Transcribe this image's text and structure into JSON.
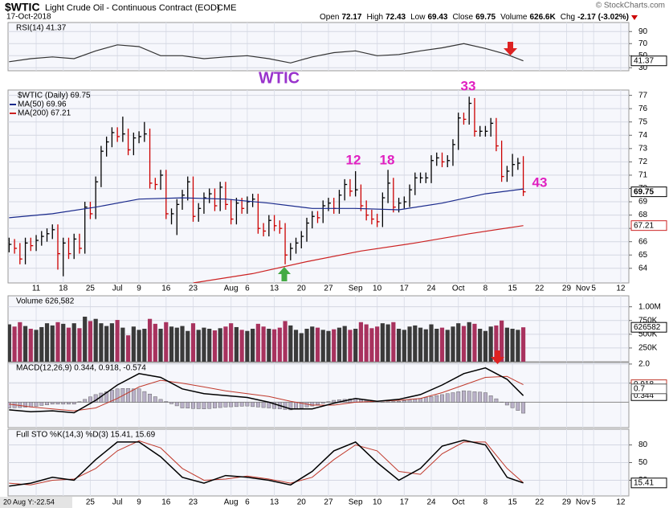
{
  "header": {
    "symbol": "$WTIC",
    "description": "Light Crude Oil - Continuous Contract (EOD)",
    "exchange": "CME",
    "date": "17-Oct-2018",
    "credit": "© StockCharts.com",
    "cursor": "20 Aug Y:-22.54",
    "quote": [
      {
        "label": "Open",
        "value": 72.17
      },
      {
        "label": "High",
        "value": 72.43
      },
      {
        "label": "Low",
        "value": 69.43
      },
      {
        "label": "Close",
        "value": 69.75
      },
      {
        "label": "Volume",
        "value": "626.6K"
      },
      {
        "label": "Chg",
        "value": "-2.17 (-3.02%)"
      }
    ]
  },
  "chart_data": [
    {
      "type": "ohlc",
      "name": "$WTIC (Daily) 69.75",
      "up_color": "#000000",
      "down_color": "#cc0000",
      "grid": true,
      "annotations": [
        "WTIC",
        "33",
        "12",
        "18",
        "43"
      ],
      "high": [
        66.3,
        66.2,
        65.9,
        66.3,
        66.3,
        66.5,
        66.8,
        67.0,
        67.3,
        67.3,
        66.3,
        66.3,
        66.6,
        66.6,
        69.0,
        69.0,
        70.9,
        73.2,
        73.9,
        74.6,
        74.6,
        75.4,
        74.5,
        74.2,
        74.3,
        75.0,
        74.5,
        70.8,
        71.4,
        71.4,
        68.5,
        69.2,
        69.9,
        70.9,
        70.9,
        68.9,
        69.7,
        70.0,
        70.0,
        70.5,
        70.5,
        69.2,
        69.3,
        69.3,
        69.4,
        69.6,
        69.6,
        67.4,
        68.0,
        68.0,
        67.6,
        67.4,
        65.9,
        66.3,
        66.8,
        67.8,
        68.3,
        68.3,
        69.1,
        69.3,
        69.3,
        69.9,
        70.7,
        70.7,
        71.3,
        70.3,
        69.1,
        68.4,
        68.1,
        69.7,
        71.4,
        70.8,
        69.3,
        69.4,
        70.3,
        71.2,
        71.2,
        71.2,
        72.5,
        72.7,
        72.7,
        72.5,
        73.7,
        75.7,
        75.7,
        76.9,
        76.8,
        74.7,
        74.7,
        75.3,
        75.3,
        73.6,
        71.7,
        72.6,
        72.3,
        72.43
      ],
      "low": [
        65.2,
        65.1,
        64.3,
        64.3,
        65.3,
        65.3,
        65.7,
        66.0,
        66.2,
        63.9,
        63.4,
        64.7,
        64.7,
        65.1,
        65.1,
        67.7,
        67.7,
        70.1,
        72.4,
        73.1,
        73.5,
        73.5,
        72.5,
        72.5,
        73.4,
        73.5,
        70.0,
        69.9,
        69.9,
        67.7,
        67.3,
        66.5,
        68.4,
        69.1,
        67.5,
        67.5,
        68.1,
        68.9,
        68.3,
        68.3,
        68.4,
        67.3,
        67.3,
        68.1,
        68.1,
        68.6,
        66.6,
        66.4,
        66.4,
        66.8,
        66.6,
        64.3,
        64.6,
        65.1,
        65.5,
        66.0,
        67.0,
        67.4,
        67.4,
        68.3,
        68.1,
        68.1,
        69.1,
        69.4,
        69.4,
        68.3,
        67.6,
        67.3,
        67.1,
        67.1,
        68.9,
        68.2,
        68.2,
        68.5,
        68.6,
        69.5,
        70.4,
        70.4,
        70.4,
        71.7,
        71.6,
        71.6,
        71.7,
        72.9,
        74.8,
        74.8,
        73.9,
        73.9,
        73.9,
        73.9,
        72.8,
        70.5,
        70.5,
        70.9,
        71.4,
        69.43
      ],
      "close": [
        65.8,
        65.5,
        64.7,
        65.9,
        65.7,
        66.1,
        66.4,
        66.6,
        66.9,
        65.1,
        65.9,
        65.1,
        66.2,
        65.5,
        68.6,
        68.1,
        70.5,
        72.8,
        73.5,
        74.2,
        73.9,
        74.1,
        72.9,
        73.8,
        73.9,
        74.1,
        70.4,
        70.3,
        71.0,
        68.1,
        68.1,
        68.8,
        69.5,
        70.5,
        67.9,
        68.5,
        69.3,
        69.6,
        68.7,
        70.1,
        68.8,
        67.7,
        68.9,
        68.5,
        69.0,
        69.2,
        67.0,
        66.8,
        67.6,
        67.2,
        67.0,
        65.0,
        65.5,
        65.9,
        66.4,
        67.4,
        67.9,
        67.8,
        68.7,
        68.9,
        68.5,
        69.5,
        70.3,
        69.8,
        69.9,
        68.7,
        68.0,
        67.7,
        67.5,
        69.3,
        70.4,
        68.6,
        68.9,
        69.0,
        69.9,
        70.8,
        70.8,
        70.8,
        72.1,
        72.3,
        72.0,
        72.1,
        73.3,
        75.3,
        75.2,
        76.4,
        74.3,
        74.3,
        74.3,
        74.9,
        73.2,
        70.9,
        71.3,
        71.8,
        71.9,
        69.75
      ],
      "overlays": [
        {
          "name": "MA(50) 69.96",
          "color": "#1a2a8c",
          "x": [
            0,
            8,
            16,
            24,
            32,
            40,
            48,
            56,
            64,
            72,
            80,
            88,
            95
          ],
          "values": [
            67.8,
            68.1,
            68.6,
            69.2,
            69.3,
            69.2,
            68.9,
            68.5,
            68.5,
            68.4,
            68.9,
            69.6,
            69.96
          ]
        },
        {
          "name": "MA(200) 67.21",
          "color": "#cc2222",
          "x": [
            34,
            45,
            55,
            65,
            75,
            85,
            95
          ],
          "values": [
            62.9,
            63.6,
            64.5,
            65.3,
            65.9,
            66.6,
            67.21
          ]
        }
      ],
      "xlim": [
        -0.2,
        114.5
      ],
      "xticks": [
        {
          "value": 5,
          "label": "11"
        },
        {
          "value": 10,
          "label": "18"
        },
        {
          "value": 15,
          "label": "25"
        },
        {
          "value": 20,
          "label": "Jul"
        },
        {
          "value": 24,
          "label": "9"
        },
        {
          "value": 29,
          "label": "16"
        },
        {
          "value": 34,
          "label": "23"
        },
        {
          "value": 41,
          "label": "Aug"
        },
        {
          "value": 44,
          "label": "6"
        },
        {
          "value": 49,
          "label": "13"
        },
        {
          "value": 54,
          "label": "20"
        },
        {
          "value": 59,
          "label": "27"
        },
        {
          "value": 64,
          "label": "Sep"
        },
        {
          "value": 68,
          "label": "10"
        },
        {
          "value": 73,
          "label": "17"
        },
        {
          "value": 78,
          "label": "24"
        },
        {
          "value": 83,
          "label": "Oct"
        },
        {
          "value": 88,
          "label": "8"
        },
        {
          "value": 93,
          "label": "15"
        },
        {
          "value": 98,
          "label": "22"
        },
        {
          "value": 103,
          "label": "29"
        },
        {
          "value": 106,
          "label": "Nov"
        },
        {
          "value": 108,
          "label": "5"
        },
        {
          "value": 113,
          "label": "12"
        }
      ],
      "ylim": [
        62.9,
        77.4
      ],
      "yticks": [
        64,
        65,
        66,
        67,
        68,
        69,
        70,
        71,
        72,
        73,
        74,
        75,
        76,
        77
      ]
    },
    {
      "type": "line",
      "title": "RSI(14) 41.37",
      "color": "#333333",
      "grid": true,
      "xlim": [
        -0.2,
        114.5
      ],
      "x": [
        0,
        4,
        8,
        12,
        16,
        20,
        24,
        28,
        32,
        36,
        40,
        44,
        48,
        52,
        56,
        60,
        64,
        68,
        72,
        76,
        80,
        84,
        88,
        92,
        95
      ],
      "values": [
        40,
        45,
        48,
        45,
        58,
        68,
        65,
        50,
        50,
        45,
        48,
        50,
        45,
        38,
        48,
        55,
        58,
        50,
        52,
        58,
        63,
        70,
        62,
        52,
        41.37
      ],
      "ylim": [
        25,
        105
      ],
      "yticks": [
        30,
        50,
        70,
        90
      ]
    },
    {
      "type": "bar",
      "title": "Volume 626,582",
      "up_color": "#3a3a3a",
      "down_color": "#a8325e",
      "grid": true,
      "xlim": [
        -0.2,
        114.5
      ],
      "values": [
        680000,
        640000,
        720000,
        650000,
        600000,
        580000,
        630000,
        700000,
        660000,
        720000,
        690000,
        620000,
        700000,
        610000,
        820000,
        740000,
        780000,
        700000,
        650000,
        700000,
        760000,
        620000,
        480000,
        640000,
        580000,
        600000,
        780000,
        690000,
        600000,
        720000,
        640000,
        620000,
        650000,
        560000,
        700000,
        580000,
        620000,
        600000,
        570000,
        610000,
        640000,
        700000,
        630000,
        580000,
        560000,
        600000,
        690000,
        640000,
        600000,
        590000,
        620000,
        740000,
        660000,
        580000,
        520000,
        600000,
        640000,
        620000,
        580000,
        560000,
        590000,
        620000,
        650000,
        580000,
        600000,
        720000,
        680000,
        610000,
        640000,
        700000,
        680000,
        720000,
        600000,
        580000,
        640000,
        660000,
        620000,
        590000,
        680000,
        600000,
        620000,
        580000,
        640000,
        700000,
        650000,
        720000,
        690000,
        600000,
        560000,
        640000,
        660000,
        750000,
        620000,
        600000,
        580000,
        626582
      ],
      "ylim": [
        0,
        1200000
      ],
      "yticks": [
        {
          "value": 250000,
          "label": "250K"
        },
        {
          "value": 500000,
          "label": "500K"
        },
        {
          "value": 750000,
          "label": "750K"
        },
        {
          "value": 1000000,
          "label": "1.00M"
        }
      ]
    },
    {
      "type": "macd",
      "title": "MACD(12,26,9) 0.344, 0.918, -0.574",
      "grid": true,
      "xlim": [
        -0.2,
        114.5
      ],
      "x": [
        0,
        4,
        8,
        12,
        16,
        20,
        24,
        28,
        32,
        36,
        40,
        44,
        48,
        52,
        56,
        60,
        64,
        68,
        72,
        76,
        80,
        84,
        88,
        92,
        95
      ],
      "macd": {
        "color": "#000000",
        "values": [
          -0.4,
          -0.5,
          -0.45,
          -0.55,
          0.1,
          0.9,
          1.5,
          1.3,
          0.7,
          0.45,
          0.35,
          0.25,
          0.0,
          -0.35,
          -0.35,
          -0.05,
          0.2,
          0.05,
          0.15,
          0.4,
          0.9,
          1.5,
          1.8,
          1.2,
          0.344
        ]
      },
      "signal": {
        "color": "#c0392b",
        "values": [
          -0.1,
          -0.25,
          -0.35,
          -0.45,
          -0.3,
          0.2,
          0.8,
          1.15,
          1.0,
          0.8,
          0.6,
          0.45,
          0.3,
          0.05,
          -0.15,
          -0.15,
          0.0,
          0.05,
          0.1,
          0.2,
          0.5,
          0.9,
          1.3,
          1.35,
          0.918
        ]
      },
      "histogram": {
        "color": "#b9b0c8",
        "values": [
          -0.3,
          -0.29,
          -0.28,
          -0.26,
          -0.25,
          -0.21,
          -0.17,
          -0.14,
          -0.1,
          -0.1,
          -0.1,
          -0.1,
          -0.1,
          0.03,
          0.15,
          0.28,
          0.4,
          0.48,
          0.55,
          0.63,
          0.7,
          0.72,
          0.72,
          0.7,
          0.7,
          0.56,
          0.43,
          0.29,
          0.15,
          0.04,
          -0.08,
          -0.19,
          -0.3,
          -0.31,
          -0.33,
          -0.34,
          -0.35,
          -0.33,
          -0.3,
          -0.28,
          -0.25,
          -0.24,
          -0.23,
          -0.21,
          -0.2,
          -0.23,
          -0.25,
          -0.28,
          -0.3,
          -0.33,
          -0.35,
          -0.38,
          -0.4,
          -0.35,
          -0.3,
          -0.25,
          -0.2,
          -0.13,
          -0.05,
          0.03,
          0.1,
          0.13,
          0.15,
          0.18,
          0.2,
          0.15,
          0.1,
          0.05,
          0.0,
          0.01,
          0.03,
          0.04,
          0.05,
          0.09,
          0.13,
          0.16,
          0.2,
          0.25,
          0.3,
          0.35,
          0.4,
          0.45,
          0.5,
          0.55,
          0.6,
          0.58,
          0.55,
          0.53,
          0.5,
          0.34,
          0.18,
          0.01,
          -0.15,
          -0.29,
          -0.43,
          -0.574
        ]
      },
      "ylim": [
        -1.33,
        2.08
      ],
      "yticks": [
        {
          "value": 1,
          "label": "1.0"
        },
        {
          "value": 2,
          "label": "2.0"
        }
      ]
    },
    {
      "type": "stochastic",
      "title": "Full STO %K(14,3) %D(3) 15.41, 15.69",
      "grid": true,
      "xlim": [
        -0.2,
        114.5
      ],
      "x": [
        0,
        4,
        8,
        12,
        16,
        20,
        24,
        28,
        32,
        36,
        40,
        44,
        48,
        52,
        56,
        60,
        64,
        68,
        72,
        76,
        80,
        84,
        88,
        92,
        95
      ],
      "k": {
        "color": "#000000",
        "values": [
          10,
          15,
          25,
          20,
          55,
          85,
          85,
          60,
          25,
          15,
          28,
          25,
          20,
          12,
          35,
          70,
          85,
          50,
          20,
          40,
          78,
          88,
          80,
          25,
          15.41
        ]
      },
      "d": {
        "color": "#c0392b",
        "values": [
          15,
          12,
          20,
          22,
          40,
          70,
          87,
          75,
          40,
          20,
          22,
          27,
          22,
          15,
          25,
          55,
          80,
          70,
          35,
          30,
          65,
          85,
          85,
          40,
          15.69
        ]
      },
      "ylim": [
        -6.7,
        106.7
      ],
      "yticks": [
        20,
        50,
        80
      ]
    }
  ]
}
